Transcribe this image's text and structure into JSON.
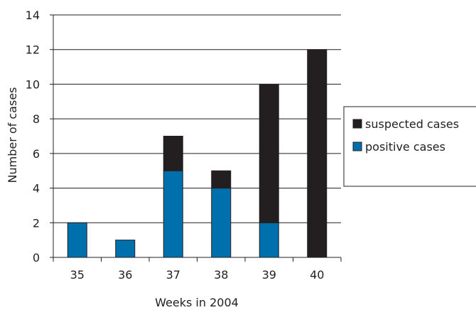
{
  "chart_data": {
    "type": "bar",
    "stacked": true,
    "title": "",
    "xlabel": "Weeks in 2004",
    "ylabel": "Number of cases",
    "categories": [
      "35",
      "36",
      "37",
      "38",
      "39",
      "40"
    ],
    "series": [
      {
        "name": "positive cases",
        "values": [
          2,
          1,
          5,
          4,
          2,
          0
        ],
        "color": "#0070ad"
      },
      {
        "name": "suspected cases",
        "values": [
          0,
          0,
          2,
          1,
          8,
          12
        ],
        "color": "#231f20"
      }
    ],
    "ylim": [
      0,
      14
    ],
    "yticks": [
      0,
      2,
      4,
      6,
      8,
      10,
      12,
      14
    ],
    "grid": true,
    "legend_position": "right",
    "legend_order": [
      "suspected cases",
      "positive cases"
    ]
  }
}
